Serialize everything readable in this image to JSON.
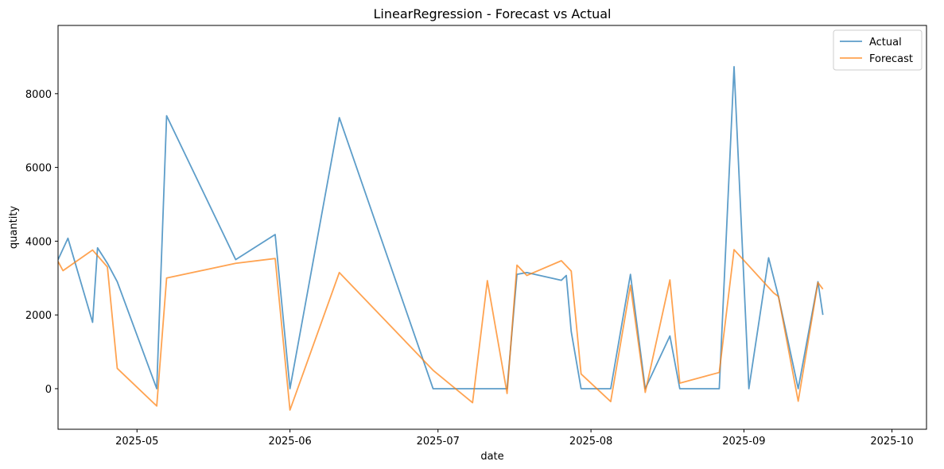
{
  "chart_data": {
    "type": "line",
    "title": "LinearRegression - Forecast vs Actual",
    "xlabel": "date",
    "ylabel": "quantity",
    "xlim": [
      "2025-04-15",
      "2025-10-08"
    ],
    "ylim": [
      -1100,
      9850
    ],
    "x_ticks": [
      {
        "date": "2025-05-01",
        "label": "2025-05"
      },
      {
        "date": "2025-06-01",
        "label": "2025-06"
      },
      {
        "date": "2025-07-01",
        "label": "2025-07"
      },
      {
        "date": "2025-08-01",
        "label": "2025-08"
      },
      {
        "date": "2025-09-01",
        "label": "2025-09"
      },
      {
        "date": "2025-10-01",
        "label": "2025-10"
      }
    ],
    "y_ticks": [
      0,
      2000,
      4000,
      6000,
      8000
    ],
    "legend_position": "top-right",
    "series": [
      {
        "name": "Actual",
        "color": "#1f77b4",
        "points": [
          {
            "x": "2025-04-15",
            "y": 3500
          },
          {
            "x": "2025-04-17",
            "y": 4080
          },
          {
            "x": "2025-04-22",
            "y": 1800
          },
          {
            "x": "2025-04-23",
            "y": 3820
          },
          {
            "x": "2025-04-25",
            "y": 3400
          },
          {
            "x": "2025-04-27",
            "y": 2900
          },
          {
            "x": "2025-05-05",
            "y": 0
          },
          {
            "x": "2025-05-07",
            "y": 7400
          },
          {
            "x": "2025-05-21",
            "y": 3500
          },
          {
            "x": "2025-05-29",
            "y": 4180
          },
          {
            "x": "2025-06-01",
            "y": 0
          },
          {
            "x": "2025-06-11",
            "y": 7350
          },
          {
            "x": "2025-06-30",
            "y": 0
          },
          {
            "x": "2025-07-07",
            "y": 0
          },
          {
            "x": "2025-07-15",
            "y": 0
          },
          {
            "x": "2025-07-17",
            "y": 3100
          },
          {
            "x": "2025-07-19",
            "y": 3150
          },
          {
            "x": "2025-07-26",
            "y": 2940
          },
          {
            "x": "2025-07-27",
            "y": 3070
          },
          {
            "x": "2025-07-28",
            "y": 1550
          },
          {
            "x": "2025-07-30",
            "y": 0
          },
          {
            "x": "2025-08-05",
            "y": 0
          },
          {
            "x": "2025-08-09",
            "y": 3100
          },
          {
            "x": "2025-08-12",
            "y": 0
          },
          {
            "x": "2025-08-17",
            "y": 1430
          },
          {
            "x": "2025-08-19",
            "y": 0
          },
          {
            "x": "2025-08-27",
            "y": 0
          },
          {
            "x": "2025-08-30",
            "y": 8730
          },
          {
            "x": "2025-09-02",
            "y": 0
          },
          {
            "x": "2025-09-06",
            "y": 3550
          },
          {
            "x": "2025-09-08",
            "y": 2500
          },
          {
            "x": "2025-09-12",
            "y": 0
          },
          {
            "x": "2025-09-16",
            "y": 2900
          },
          {
            "x": "2025-09-17",
            "y": 2000
          }
        ]
      },
      {
        "name": "Forecast",
        "color": "#ff7f0e",
        "points": [
          {
            "x": "2025-04-15",
            "y": 3450
          },
          {
            "x": "2025-04-16",
            "y": 3200
          },
          {
            "x": "2025-04-22",
            "y": 3760
          },
          {
            "x": "2025-04-25",
            "y": 3300
          },
          {
            "x": "2025-04-27",
            "y": 550
          },
          {
            "x": "2025-05-05",
            "y": -470
          },
          {
            "x": "2025-05-07",
            "y": 3000
          },
          {
            "x": "2025-05-21",
            "y": 3400
          },
          {
            "x": "2025-05-29",
            "y": 3530
          },
          {
            "x": "2025-06-01",
            "y": -580
          },
          {
            "x": "2025-06-11",
            "y": 3150
          },
          {
            "x": "2025-06-30",
            "y": 500
          },
          {
            "x": "2025-07-08",
            "y": -380
          },
          {
            "x": "2025-07-11",
            "y": 2930
          },
          {
            "x": "2025-07-15",
            "y": -130
          },
          {
            "x": "2025-07-17",
            "y": 3350
          },
          {
            "x": "2025-07-19",
            "y": 3070
          },
          {
            "x": "2025-07-26",
            "y": 3470
          },
          {
            "x": "2025-07-28",
            "y": 3190
          },
          {
            "x": "2025-07-30",
            "y": 400
          },
          {
            "x": "2025-08-05",
            "y": -350
          },
          {
            "x": "2025-08-09",
            "y": 2800
          },
          {
            "x": "2025-08-12",
            "y": -100
          },
          {
            "x": "2025-08-17",
            "y": 2950
          },
          {
            "x": "2025-08-19",
            "y": 150
          },
          {
            "x": "2025-08-27",
            "y": 440
          },
          {
            "x": "2025-08-30",
            "y": 3770
          },
          {
            "x": "2025-09-07",
            "y": 2600
          },
          {
            "x": "2025-09-08",
            "y": 2500
          },
          {
            "x": "2025-09-12",
            "y": -340
          },
          {
            "x": "2025-09-16",
            "y": 2880
          },
          {
            "x": "2025-09-17",
            "y": 2700
          }
        ]
      }
    ]
  }
}
